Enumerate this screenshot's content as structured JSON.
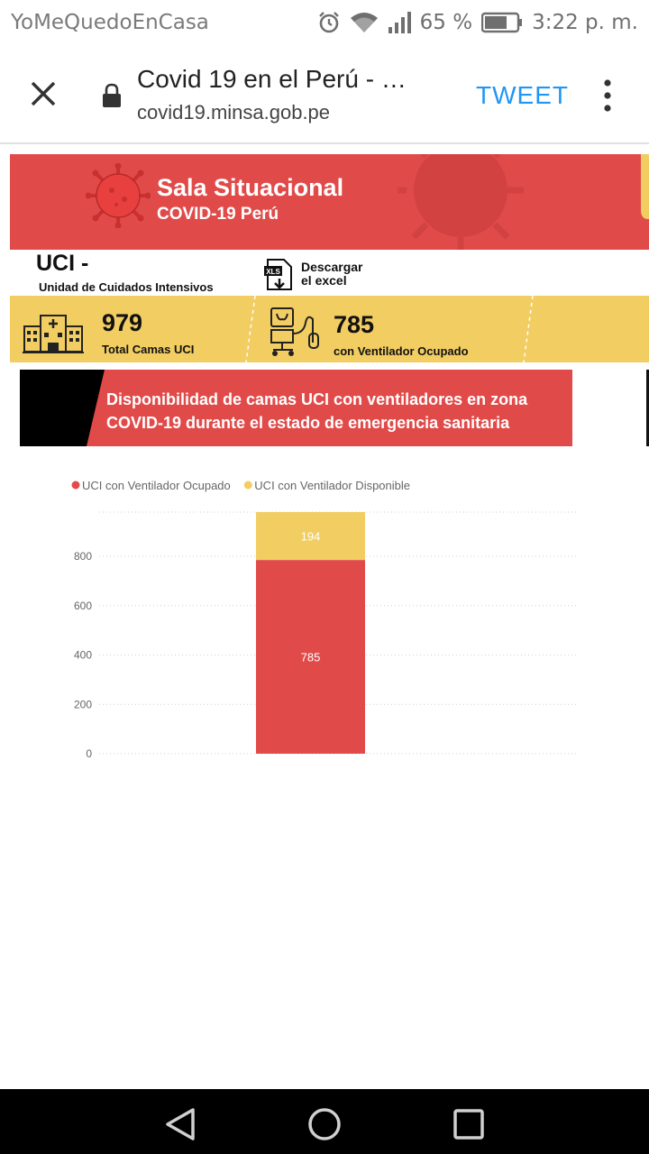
{
  "status_bar": {
    "app_name": "YoMeQuedoEnCasa",
    "battery": "65 %",
    "time": "3:22 p. m."
  },
  "browser": {
    "page_title": "Covid 19 en el Perú - …",
    "url": "covid19.minsa.gob.pe",
    "tweet_label": "TWEET"
  },
  "banner": {
    "title": "Sala Situacional",
    "subtitle": "COVID-19 Perú"
  },
  "section": {
    "title": "UCI  -",
    "subtitle": "Unidad de Cuidados Intensivos",
    "download_label_1": "Descargar",
    "download_label_2": "el excel"
  },
  "stats": {
    "total_beds": "979",
    "total_beds_label": "Total Camas UCI",
    "occupied": "785",
    "occupied_label": "con Ventilador Ocupado"
  },
  "chart_header": {
    "line1": "Disponibilidad  de camas UCI con ventiladores en zona",
    "line2": "COVID-19 durante el estado de emergencia sanitaria"
  },
  "colors": {
    "red": "#e04b4a",
    "yellow": "#f2cd62",
    "link_blue": "#2196f3"
  },
  "chart_data": {
    "type": "bar",
    "stacked": true,
    "categories": [
      ""
    ],
    "series": [
      {
        "name": "UCI con Ventilador Ocupado",
        "values": [
          785
        ],
        "color": "#e04b4a"
      },
      {
        "name": "UCI con Ventilador Disponible",
        "values": [
          194
        ],
        "color": "#f2cd62"
      }
    ],
    "yticks": [
      "0",
      "200",
      "400",
      "600",
      "800"
    ],
    "ylim": [
      0,
      979
    ],
    "legend": "top-left",
    "grid": true
  }
}
